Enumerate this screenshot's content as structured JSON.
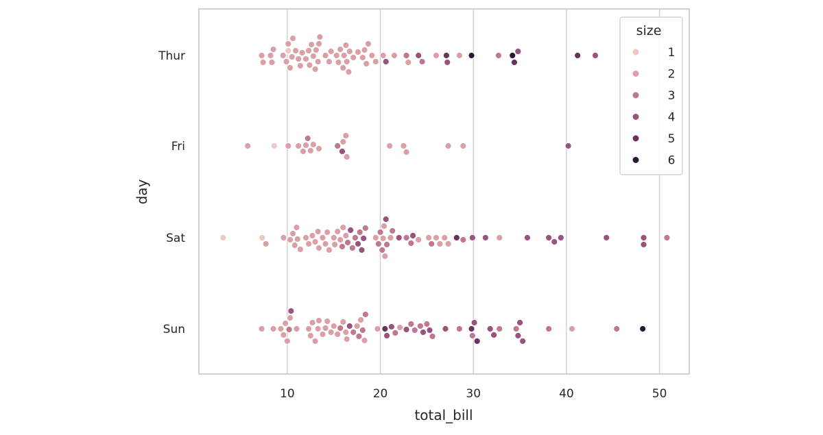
{
  "chart_data": {
    "type": "scatter",
    "subtype": "swarm",
    "title": "",
    "xlabel": "total_bill",
    "ylabel": "day",
    "xlim": [
      0.5,
      53.2
    ],
    "xticks": [
      10,
      20,
      30,
      40,
      50
    ],
    "categories": [
      "Thur",
      "Fri",
      "Sat",
      "Sun"
    ],
    "grid": "vertical",
    "legend": {
      "title": "size",
      "placement": "top-right",
      "levels": [
        1,
        2,
        3,
        4,
        5,
        6
      ]
    },
    "colors": {
      "1": "#ecc9c4",
      "2": "#dba0a6",
      "3": "#c0788f",
      "4": "#99547e",
      "5": "#67345f",
      "6": "#2b1839",
      "grid": "#cccccc",
      "text": "#262626"
    },
    "series": [
      {
        "category": "Thur",
        "points": [
          [
            7.25,
            2
          ],
          [
            7.4,
            2
          ],
          [
            8.2,
            2
          ],
          [
            8.35,
            2
          ],
          [
            8.5,
            2
          ],
          [
            9.55,
            2
          ],
          [
            9.9,
            2
          ],
          [
            10.1,
            1
          ],
          [
            10.1,
            2
          ],
          [
            10.3,
            2
          ],
          [
            10.5,
            2
          ],
          [
            10.6,
            2
          ],
          [
            10.9,
            2
          ],
          [
            11.2,
            2
          ],
          [
            11.4,
            2
          ],
          [
            11.6,
            2
          ],
          [
            12.0,
            2
          ],
          [
            12.3,
            2
          ],
          [
            12.4,
            2
          ],
          [
            12.6,
            2
          ],
          [
            12.8,
            2
          ],
          [
            13.0,
            2
          ],
          [
            13.1,
            2
          ],
          [
            13.3,
            2
          ],
          [
            13.4,
            2
          ],
          [
            13.5,
            2
          ],
          [
            14.1,
            2
          ],
          [
            14.5,
            2
          ],
          [
            14.7,
            2
          ],
          [
            15.3,
            2
          ],
          [
            15.5,
            2
          ],
          [
            15.7,
            2
          ],
          [
            16.0,
            2
          ],
          [
            16.1,
            2
          ],
          [
            16.3,
            2
          ],
          [
            16.4,
            2
          ],
          [
            16.6,
            2
          ],
          [
            16.7,
            2
          ],
          [
            17.1,
            2
          ],
          [
            17.6,
            2
          ],
          [
            18.1,
            2
          ],
          [
            18.3,
            2
          ],
          [
            18.5,
            2
          ],
          [
            18.7,
            2
          ],
          [
            19.1,
            2
          ],
          [
            19.5,
            2
          ],
          [
            20.3,
            2
          ],
          [
            20.6,
            4
          ],
          [
            21.5,
            2
          ],
          [
            22.8,
            3
          ],
          [
            23.0,
            2
          ],
          [
            24.1,
            4
          ],
          [
            24.5,
            3
          ],
          [
            26.0,
            2
          ],
          [
            27.1,
            5
          ],
          [
            27.2,
            4
          ],
          [
            28.5,
            2
          ],
          [
            29.8,
            6
          ],
          [
            32.7,
            3
          ],
          [
            34.2,
            6
          ],
          [
            34.4,
            5
          ],
          [
            34.8,
            4
          ],
          [
            41.2,
            5
          ],
          [
            43.1,
            4
          ]
        ]
      },
      {
        "category": "Fri",
        "points": [
          [
            5.75,
            2
          ],
          [
            8.6,
            1
          ],
          [
            10.1,
            2
          ],
          [
            11.2,
            2
          ],
          [
            11.7,
            2
          ],
          [
            12.0,
            2
          ],
          [
            12.2,
            3
          ],
          [
            12.5,
            2
          ],
          [
            12.8,
            2
          ],
          [
            13.4,
            2
          ],
          [
            15.4,
            3
          ],
          [
            15.9,
            4
          ],
          [
            16.0,
            2
          ],
          [
            16.3,
            2
          ],
          [
            16.4,
            2
          ],
          [
            21.0,
            2
          ],
          [
            22.5,
            2
          ],
          [
            22.8,
            2
          ],
          [
            27.3,
            2
          ],
          [
            28.9,
            2
          ],
          [
            40.2,
            4
          ]
        ]
      },
      {
        "category": "Sat",
        "points": [
          [
            3.1,
            1
          ],
          [
            7.3,
            1
          ],
          [
            7.7,
            2
          ],
          [
            9.6,
            2
          ],
          [
            10.3,
            2
          ],
          [
            10.6,
            2
          ],
          [
            10.8,
            2
          ],
          [
            11.0,
            2
          ],
          [
            11.1,
            2
          ],
          [
            11.4,
            2
          ],
          [
            12.0,
            2
          ],
          [
            12.3,
            2
          ],
          [
            12.7,
            2
          ],
          [
            13.0,
            2
          ],
          [
            13.3,
            2
          ],
          [
            13.4,
            2
          ],
          [
            13.8,
            2
          ],
          [
            14.1,
            2
          ],
          [
            14.3,
            2
          ],
          [
            14.5,
            2
          ],
          [
            15.0,
            2
          ],
          [
            15.1,
            2
          ],
          [
            15.4,
            2
          ],
          [
            15.7,
            2
          ],
          [
            15.9,
            3
          ],
          [
            16.0,
            2
          ],
          [
            16.3,
            2
          ],
          [
            16.5,
            3
          ],
          [
            16.8,
            4
          ],
          [
            17.0,
            3
          ],
          [
            17.3,
            3
          ],
          [
            17.6,
            4
          ],
          [
            17.8,
            3
          ],
          [
            18.0,
            4
          ],
          [
            18.2,
            4
          ],
          [
            18.4,
            3
          ],
          [
            19.5,
            2
          ],
          [
            19.8,
            3
          ],
          [
            20.0,
            3
          ],
          [
            20.2,
            3
          ],
          [
            20.3,
            2
          ],
          [
            20.4,
            2
          ],
          [
            20.5,
            2
          ],
          [
            20.6,
            4
          ],
          [
            20.7,
            3
          ],
          [
            21.1,
            2
          ],
          [
            21.3,
            3
          ],
          [
            22.0,
            4
          ],
          [
            22.8,
            3
          ],
          [
            23.3,
            3
          ],
          [
            23.5,
            4
          ],
          [
            24.1,
            2
          ],
          [
            25.2,
            2
          ],
          [
            25.5,
            3
          ],
          [
            26.0,
            2
          ],
          [
            26.4,
            2
          ],
          [
            26.9,
            2
          ],
          [
            27.3,
            2
          ],
          [
            28.2,
            5
          ],
          [
            28.9,
            3
          ],
          [
            29.9,
            4
          ],
          [
            31.3,
            4
          ],
          [
            32.8,
            2
          ],
          [
            35.8,
            4
          ],
          [
            38.1,
            4
          ],
          [
            38.7,
            4
          ],
          [
            39.4,
            4
          ],
          [
            44.3,
            4
          ],
          [
            48.3,
            4
          ],
          [
            48.3,
            4
          ],
          [
            50.8,
            3
          ]
        ]
      },
      {
        "category": "Sun",
        "points": [
          [
            7.25,
            2
          ],
          [
            8.5,
            2
          ],
          [
            9.3,
            2
          ],
          [
            9.6,
            2
          ],
          [
            9.8,
            2
          ],
          [
            10.0,
            2
          ],
          [
            10.2,
            3
          ],
          [
            10.3,
            2
          ],
          [
            10.4,
            4
          ],
          [
            11.0,
            2
          ],
          [
            12.3,
            2
          ],
          [
            12.5,
            2
          ],
          [
            12.7,
            2
          ],
          [
            13.0,
            2
          ],
          [
            13.3,
            2
          ],
          [
            13.4,
            2
          ],
          [
            13.8,
            2
          ],
          [
            14.1,
            2
          ],
          [
            14.3,
            2
          ],
          [
            14.7,
            2
          ],
          [
            15.0,
            2
          ],
          [
            15.4,
            2
          ],
          [
            15.7,
            3
          ],
          [
            16.0,
            2
          ],
          [
            16.3,
            2
          ],
          [
            16.4,
            2
          ],
          [
            16.7,
            4
          ],
          [
            17.1,
            3
          ],
          [
            17.5,
            2
          ],
          [
            17.7,
            3
          ],
          [
            17.9,
            2
          ],
          [
            18.1,
            3
          ],
          [
            18.3,
            2
          ],
          [
            18.4,
            3
          ],
          [
            19.7,
            2
          ],
          [
            20.5,
            5
          ],
          [
            20.7,
            4
          ],
          [
            21.2,
            4
          ],
          [
            21.6,
            3
          ],
          [
            22.1,
            2
          ],
          [
            22.8,
            4
          ],
          [
            23.3,
            3
          ],
          [
            23.7,
            3
          ],
          [
            24.3,
            3
          ],
          [
            24.6,
            4
          ],
          [
            25.0,
            3
          ],
          [
            25.3,
            4
          ],
          [
            25.6,
            3
          ],
          [
            27.0,
            4
          ],
          [
            28.5,
            3
          ],
          [
            29.8,
            5
          ],
          [
            29.9,
            3
          ],
          [
            30.1,
            4
          ],
          [
            30.4,
            5
          ],
          [
            31.8,
            4
          ],
          [
            32.2,
            4
          ],
          [
            32.8,
            3
          ],
          [
            34.6,
            3
          ],
          [
            34.8,
            4
          ],
          [
            35.0,
            4
          ],
          [
            35.3,
            4
          ],
          [
            38.1,
            3
          ],
          [
            40.6,
            2
          ],
          [
            45.4,
            3
          ],
          [
            48.2,
            6
          ]
        ]
      }
    ]
  }
}
